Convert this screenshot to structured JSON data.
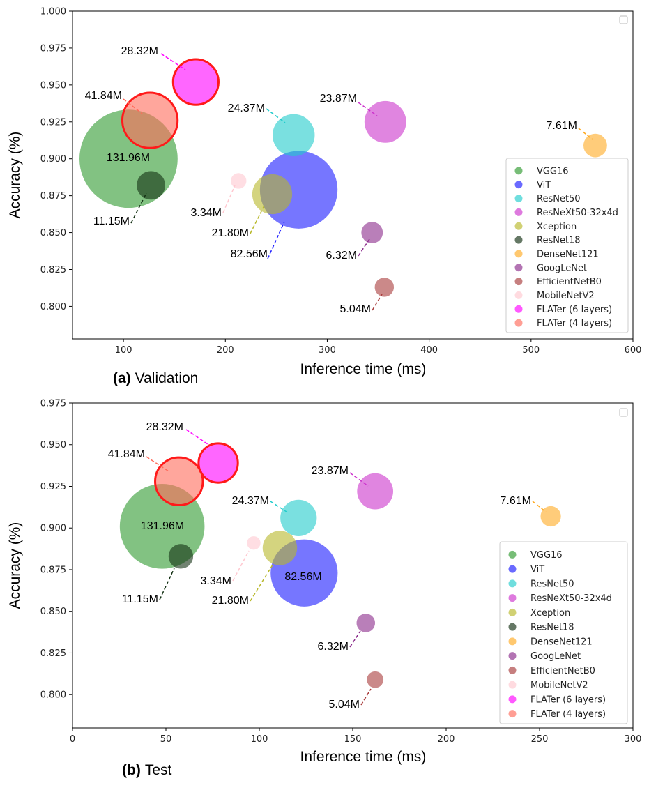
{
  "chart_data": [
    {
      "type": "scatter",
      "caption_prefix": "(a)",
      "caption_text": "Validation",
      "xlabel": "Inference time (ms)",
      "ylabel": "Accuracy (%)",
      "xlim": [
        50,
        600
      ],
      "ylim": [
        0.778,
        1.0
      ],
      "xticks": [
        "100",
        "200",
        "300",
        "400",
        "500",
        "600"
      ],
      "yticks": [
        "0.800",
        "0.825",
        "0.850",
        "0.875",
        "0.900",
        "0.925",
        "0.950",
        "0.975",
        "1.000"
      ],
      "legend_position": "lower-right",
      "series": [
        {
          "name": "VGG16",
          "x": 105,
          "y": 0.9,
          "params": 131.96,
          "label": "131.96M",
          "color": "#2e9a2e"
        },
        {
          "name": "ViT",
          "x": 272,
          "y": 0.879,
          "params": 82.56,
          "label": "82.56M",
          "color": "#1a1aff"
        },
        {
          "name": "ResNet50",
          "x": 267,
          "y": 0.916,
          "params": 24.37,
          "label": "24.37M",
          "color": "#22cccc"
        },
        {
          "name": "ResNeXt50-32x4d",
          "x": 357,
          "y": 0.925,
          "params": 23.87,
          "label": "23.87M",
          "color": "#cc33cc"
        },
        {
          "name": "Xception",
          "x": 246,
          "y": 0.876,
          "params": 21.8,
          "label": "21.80M",
          "color": "#b8b82a"
        },
        {
          "name": "ResNet18",
          "x": 127,
          "y": 0.882,
          "params": 11.15,
          "label": "11.15M",
          "color": "#123012"
        },
        {
          "name": "DenseNet121",
          "x": 563,
          "y": 0.909,
          "params": 7.61,
          "label": "7.61M",
          "color": "#ffaa22"
        },
        {
          "name": "GoogLeNet",
          "x": 344,
          "y": 0.85,
          "params": 6.32,
          "label": "6.32M",
          "color": "#8b2a8b"
        },
        {
          "name": "EfficientNetB0",
          "x": 356,
          "y": 0.813,
          "params": 5.04,
          "label": "5.04M",
          "color": "#a83a3a"
        },
        {
          "name": "MobileNetV2",
          "x": 213,
          "y": 0.885,
          "params": 3.34,
          "label": "3.34M",
          "color": "#ffc8d0"
        },
        {
          "name": "FLATer (6 layers)",
          "x": 171,
          "y": 0.952,
          "params": 28.32,
          "label": "28.32M",
          "color": "#ff00ff"
        },
        {
          "name": "FLATer (4 layers)",
          "x": 126,
          "y": 0.926,
          "params": 41.84,
          "label": "41.84M",
          "color": "#ff6a5a"
        }
      ]
    },
    {
      "type": "scatter",
      "caption_prefix": "(b)",
      "caption_text": "Test",
      "xlabel": "Inference time (ms)",
      "ylabel": "Accuracy (%)",
      "xlim": [
        0,
        300
      ],
      "ylim": [
        0.78,
        0.975
      ],
      "xticks": [
        "0",
        "50",
        "100",
        "150",
        "200",
        "250",
        "300"
      ],
      "yticks": [
        "0.800",
        "0.825",
        "0.850",
        "0.875",
        "0.900",
        "0.925",
        "0.950",
        "0.975"
      ],
      "legend_position": "lower-right",
      "series": [
        {
          "name": "VGG16",
          "x": 48,
          "y": 0.901,
          "params": 131.96,
          "label": "131.96M",
          "color": "#2e9a2e"
        },
        {
          "name": "ViT",
          "x": 124,
          "y": 0.873,
          "params": 82.56,
          "label": "82.56M",
          "color": "#1a1aff"
        },
        {
          "name": "ResNet50",
          "x": 121,
          "y": 0.906,
          "params": 24.37,
          "label": "24.37M",
          "color": "#22cccc"
        },
        {
          "name": "ResNeXt50-32x4d",
          "x": 162,
          "y": 0.922,
          "params": 23.87,
          "label": "23.87M",
          "color": "#cc33cc"
        },
        {
          "name": "Xception",
          "x": 111,
          "y": 0.888,
          "params": 21.8,
          "label": "21.80M",
          "color": "#b8b82a"
        },
        {
          "name": "ResNet18",
          "x": 58,
          "y": 0.883,
          "params": 11.15,
          "label": "11.15M",
          "color": "#123012"
        },
        {
          "name": "DenseNet121",
          "x": 256,
          "y": 0.907,
          "params": 7.61,
          "label": "7.61M",
          "color": "#ffaa22"
        },
        {
          "name": "GoogLeNet",
          "x": 157,
          "y": 0.843,
          "params": 6.32,
          "label": "6.32M",
          "color": "#8b2a8b"
        },
        {
          "name": "EfficientNetB0",
          "x": 162,
          "y": 0.809,
          "params": 5.04,
          "label": "5.04M",
          "color": "#a83a3a"
        },
        {
          "name": "MobileNetV2",
          "x": 97,
          "y": 0.891,
          "params": 3.34,
          "label": "3.34M",
          "color": "#ffc8d0"
        },
        {
          "name": "FLATer (6 layers)",
          "x": 78,
          "y": 0.939,
          "params": 28.32,
          "label": "28.32M",
          "color": "#ff00ff"
        },
        {
          "name": "FLATer (4 layers)",
          "x": 57,
          "y": 0.928,
          "params": 41.84,
          "label": "41.84M",
          "color": "#ff6a5a"
        }
      ]
    }
  ]
}
